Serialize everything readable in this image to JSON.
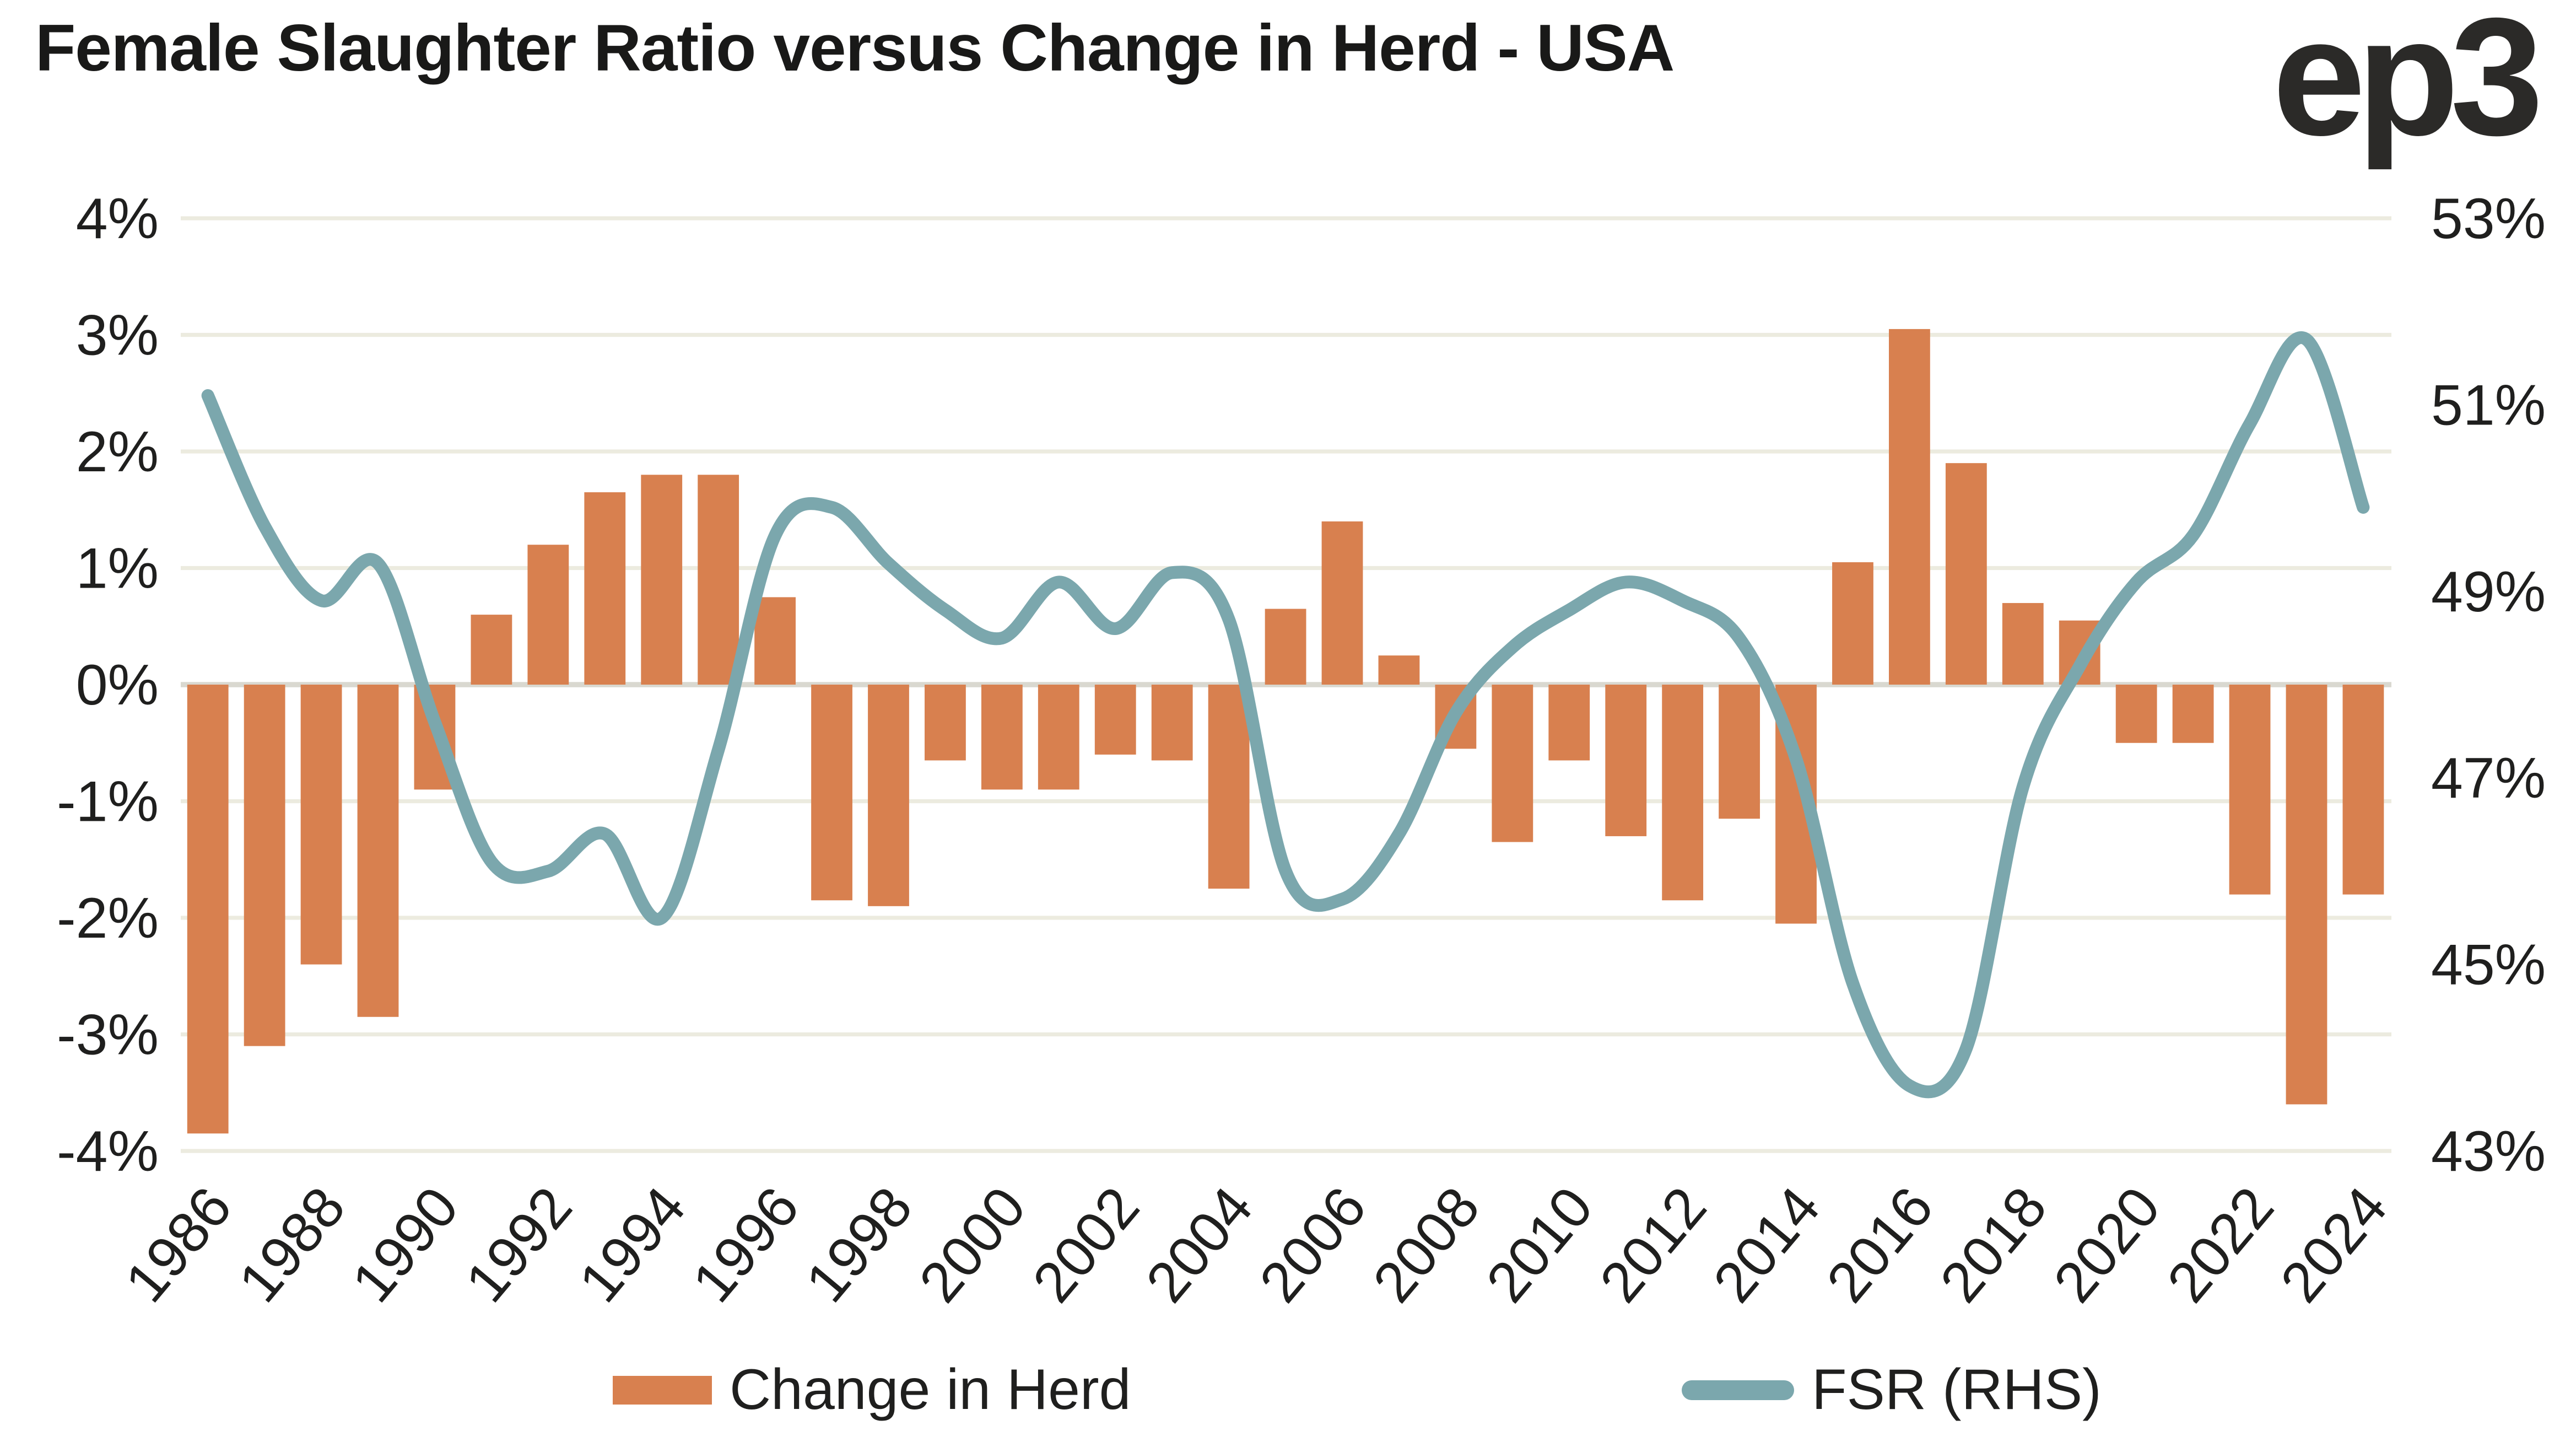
{
  "title": "Female Slaughter Ratio versus Change in Herd - USA",
  "logo": "ep3",
  "colors": {
    "bar": "#D8804F",
    "line": "#7BA7AD",
    "grid": "#ECEBDF",
    "zero_line": "#D9D8D0",
    "text": "#1F1F1E",
    "title": "#191918",
    "logo": "#2B2A28",
    "background": "#FFFFFF"
  },
  "legend": {
    "herd_label": "Change in Herd",
    "fsr_label": "FSR (RHS)"
  },
  "chart_data": {
    "type": "combo",
    "title": "Female Slaughter Ratio versus Change in Herd - USA",
    "grid": "horizontal",
    "legend_position": "bottom",
    "x": [
      1986,
      1987,
      1988,
      1989,
      1990,
      1991,
      1992,
      1993,
      1994,
      1995,
      1996,
      1997,
      1998,
      1999,
      2000,
      2001,
      2002,
      2003,
      2004,
      2005,
      2006,
      2007,
      2008,
      2009,
      2010,
      2011,
      2012,
      2013,
      2014,
      2015,
      2016,
      2017,
      2018,
      2019,
      2020,
      2021,
      2022,
      2023,
      2024
    ],
    "series": [
      {
        "name": "Change in Herd",
        "type": "bar",
        "axis": "left",
        "unit": "%",
        "values": [
          -3.85,
          -3.1,
          -2.4,
          -2.85,
          -0.9,
          0.6,
          1.2,
          1.65,
          1.8,
          1.8,
          0.75,
          -1.85,
          -1.9,
          -0.65,
          -0.9,
          -0.9,
          -0.6,
          -0.65,
          -1.75,
          0.65,
          1.4,
          0.25,
          -0.55,
          -1.35,
          -0.65,
          -1.3,
          -1.85,
          -1.15,
          -2.05,
          1.05,
          3.05,
          1.9,
          0.7,
          0.55,
          -0.5,
          -0.5,
          -1.8,
          -3.6,
          -1.8
        ]
      },
      {
        "name": "FSR (RHS)",
        "type": "line",
        "axis": "right",
        "unit": "%",
        "values": [
          51.1,
          49.7,
          48.9,
          49.3,
          47.6,
          46.1,
          46.0,
          46.4,
          45.5,
          47.3,
          49.6,
          49.9,
          49.3,
          48.8,
          48.5,
          49.1,
          48.6,
          49.2,
          48.7,
          46.0,
          45.7,
          46.4,
          47.7,
          48.4,
          48.8,
          49.1,
          48.9,
          48.5,
          47.2,
          44.8,
          43.7,
          44.1,
          46.9,
          48.2,
          49.1,
          49.6,
          50.8,
          51.7,
          49.9
        ]
      }
    ],
    "left_axis": {
      "min": -4,
      "max": 4,
      "tick_values": [
        4,
        3,
        2,
        1,
        0,
        -1,
        -2,
        -3,
        -4
      ],
      "tick_labels": [
        "4%",
        "3%",
        "2%",
        "1%",
        "0%",
        "-1%",
        "-2%",
        "-3%",
        "-4%"
      ]
    },
    "right_axis": {
      "min": 43,
      "max": 53,
      "tick_values": [
        53,
        51,
        49,
        47,
        45,
        43
      ],
      "tick_labels": [
        "53%",
        "51%",
        "49%",
        "47%",
        "45%",
        "43%"
      ]
    },
    "x_tick_labels": [
      "1986",
      "1988",
      "1990",
      "1992",
      "1994",
      "1996",
      "1998",
      "2000",
      "2002",
      "2004",
      "2006",
      "2008",
      "2010",
      "2012",
      "2014",
      "2016",
      "2018",
      "2020",
      "2022",
      "2024"
    ]
  }
}
